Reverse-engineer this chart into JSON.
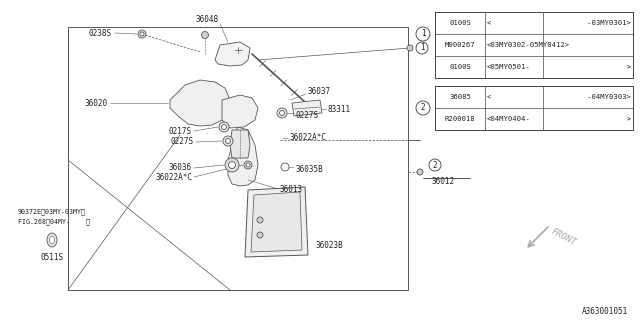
{
  "bg_color": "#ffffff",
  "line_color": "#555555",
  "line_color_dark": "#333333",
  "text_color": "#222222",
  "part_id": "A363001051",
  "table1_rows": [
    [
      "0100S",
      "<",
      "   -03MY0301>"
    ],
    [
      "M000267",
      "<03MY0302-05MY0412>",
      ""
    ],
    [
      "0100S",
      "<05MY0501-",
      "          >"
    ]
  ],
  "table2_rows": [
    [
      "36085",
      "<",
      "   -04MY0303>"
    ],
    [
      "R200018",
      "<04MY0404-",
      "          >"
    ]
  ],
  "figsize": [
    6.4,
    3.2
  ],
  "dpi": 100
}
